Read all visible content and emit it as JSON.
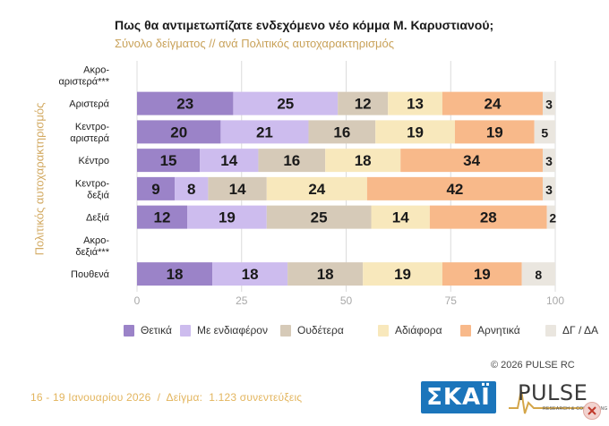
{
  "title": "Πως θα αντιμετωπίζατε ενδεχόμενο νέο κόμμα Μ. Καρυστιανού;",
  "subtitle": "Σύνολο δείγματος // ανά Πολιτικός αυτοχαρακτηρισμός",
  "copyright": "©  2026  PULSE RC",
  "footer_note": "16 - 19 Ιανουαρίου 2026  /  Δείγμα:  1.123 συνεντεύξεις",
  "logos": {
    "skai": "ΣΚΑΪ",
    "pulse": "PULSE",
    "pulse_tag": "RESEARCH & CONSULTING"
  },
  "colors": {
    "Θετικά": "#9b83c8",
    "Με ενδιαφέρον": "#cdbcee",
    "Ουδέτερα": "#d6cab8",
    "Αδιάφορα": "#f8e8bc",
    "Αρνητικά": "#f8b98a",
    "ΔΓ / ΔΑ": "#eae6df"
  },
  "chart_data": {
    "type": "bar",
    "orientation": "horizontal",
    "stacked": true,
    "ylabel": "Πολιτικός αυτοχαρακτηρισμός",
    "xlim": [
      0,
      100
    ],
    "xticks": [
      0,
      25,
      50,
      75,
      100
    ],
    "grid": true,
    "legend_position": "bottom",
    "categories": [
      "Ακρο-\nαριστερά***",
      "Αριστερά",
      "Κεντρο-\nαριστερά",
      "Κέντρο",
      "Κεντρο-\nδεξιά",
      "Δεξιά",
      "Ακρο-\nδεξιά***",
      "Πουθενά"
    ],
    "series": [
      {
        "name": "Θετικά",
        "values": [
          null,
          23,
          20,
          15,
          9,
          12,
          null,
          18
        ]
      },
      {
        "name": "Με ενδιαφέρον",
        "values": [
          null,
          25,
          21,
          14,
          8,
          19,
          null,
          18
        ]
      },
      {
        "name": "Ουδέτερα",
        "values": [
          null,
          12,
          16,
          16,
          14,
          25,
          null,
          18
        ]
      },
      {
        "name": "Αδιάφορα",
        "values": [
          null,
          13,
          19,
          18,
          24,
          14,
          null,
          19
        ]
      },
      {
        "name": "Αρνητικά",
        "values": [
          null,
          24,
          19,
          34,
          42,
          28,
          null,
          19
        ]
      },
      {
        "name": "ΔΓ / ΔΑ",
        "values": [
          null,
          3,
          5,
          3,
          3,
          2,
          null,
          8
        ]
      }
    ]
  }
}
